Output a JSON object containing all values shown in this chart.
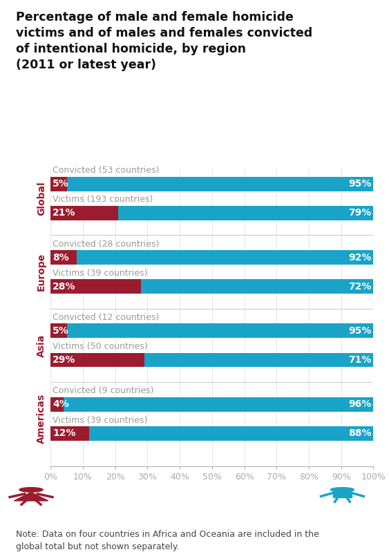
{
  "title": "Percentage of male and female homicide\nvictims and of males and females convicted\nof intentional homicide, by region\n(2011 or latest year)",
  "title_fontsize": 12.5,
  "background_color": "#ffffff",
  "female_color": "#9b1c2e",
  "male_color": "#1aa3c8",
  "region_label_color": "#9b1c2e",
  "bars": [
    {
      "region": "Global",
      "type": "Convicted",
      "countries": 53,
      "female": 5,
      "male": 95
    },
    {
      "region": "Global",
      "type": "Victims",
      "countries": 193,
      "female": 21,
      "male": 79
    },
    {
      "region": "Europe",
      "type": "Convicted",
      "countries": 28,
      "female": 8,
      "male": 92
    },
    {
      "region": "Europe",
      "type": "Victims",
      "countries": 39,
      "female": 28,
      "male": 72
    },
    {
      "region": "Asia",
      "type": "Convicted",
      "countries": 12,
      "female": 5,
      "male": 95
    },
    {
      "region": "Asia",
      "type": "Victims",
      "countries": 50,
      "female": 29,
      "male": 71
    },
    {
      "region": "Americas",
      "type": "Convicted",
      "countries": 9,
      "female": 4,
      "male": 96
    },
    {
      "region": "Americas",
      "type": "Victims",
      "countries": 39,
      "female": 12,
      "male": 88
    }
  ],
  "note": "Note: Data on four countries in Africa and Oceania are included in the\nglobal total but not shown separately.",
  "note_fontsize": 9,
  "axis_label_fontsize": 9,
  "bar_label_fontsize": 10,
  "region_label_fontsize": 10,
  "category_label_fontsize": 9,
  "category_label_color": "#999999",
  "separator_color": "#cccccc",
  "grid_color": "#e0e0e0",
  "axis_color": "#aaaaaa"
}
